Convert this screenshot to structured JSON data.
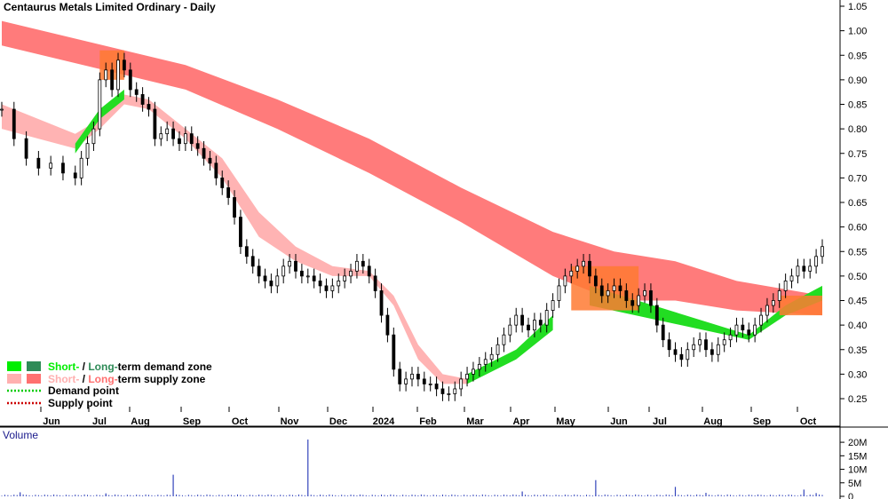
{
  "chart_data": {
    "type": "candlestick",
    "title": "Centaurus Metals Limited Ordinary - Daily",
    "x_ticks": [
      "Jun",
      "Jul",
      "Aug",
      "Sep",
      "Oct",
      "Nov",
      "Dec",
      "2024",
      "Feb",
      "Mar",
      "Apr",
      "May",
      "Jun",
      "Jul",
      "Aug",
      "Sep",
      "Oct"
    ],
    "y_ticks": [
      "1.05",
      "1.00",
      "0.95",
      "0.90",
      "0.85",
      "0.80",
      "0.75",
      "0.70",
      "0.65",
      "0.60",
      "0.55",
      "0.50",
      "0.45",
      "0.40",
      "0.35",
      "0.30",
      "0.25"
    ],
    "ylim": [
      0.2,
      1.06
    ],
    "price_series": {
      "name": "Price",
      "points": [
        [
          0,
          0.84
        ],
        [
          2,
          0.78
        ],
        [
          4,
          0.74
        ],
        [
          6,
          0.72
        ],
        [
          8,
          0.73
        ],
        [
          10,
          0.71
        ],
        [
          12,
          0.7
        ],
        [
          13,
          0.74
        ],
        [
          14,
          0.77
        ],
        [
          15,
          0.8
        ],
        [
          16,
          0.9
        ],
        [
          17,
          0.92
        ],
        [
          18,
          0.88
        ],
        [
          19,
          0.94
        ],
        [
          20,
          0.92
        ],
        [
          21,
          0.88
        ],
        [
          22,
          0.87
        ],
        [
          23,
          0.85
        ],
        [
          24,
          0.84
        ],
        [
          25,
          0.78
        ],
        [
          26,
          0.79
        ],
        [
          27,
          0.8
        ],
        [
          28,
          0.78
        ],
        [
          29,
          0.77
        ],
        [
          30,
          0.79
        ],
        [
          31,
          0.77
        ],
        [
          32,
          0.76
        ],
        [
          33,
          0.74
        ],
        [
          34,
          0.73
        ],
        [
          35,
          0.7
        ],
        [
          36,
          0.68
        ],
        [
          37,
          0.66
        ],
        [
          38,
          0.62
        ],
        [
          39,
          0.56
        ],
        [
          40,
          0.54
        ],
        [
          41,
          0.52
        ],
        [
          42,
          0.5
        ],
        [
          43,
          0.49
        ],
        [
          44,
          0.48
        ],
        [
          45,
          0.5
        ],
        [
          46,
          0.52
        ],
        [
          47,
          0.53
        ],
        [
          48,
          0.51
        ],
        [
          49,
          0.5
        ],
        [
          50,
          0.5
        ],
        [
          51,
          0.49
        ],
        [
          52,
          0.48
        ],
        [
          53,
          0.47
        ],
        [
          54,
          0.48
        ],
        [
          55,
          0.49
        ],
        [
          56,
          0.5
        ],
        [
          57,
          0.51
        ],
        [
          58,
          0.53
        ],
        [
          59,
          0.52
        ],
        [
          60,
          0.5
        ],
        [
          61,
          0.47
        ],
        [
          62,
          0.42
        ],
        [
          63,
          0.38
        ],
        [
          64,
          0.31
        ],
        [
          65,
          0.28
        ],
        [
          66,
          0.29
        ],
        [
          67,
          0.3
        ],
        [
          68,
          0.29
        ],
        [
          69,
          0.28
        ],
        [
          70,
          0.28
        ],
        [
          71,
          0.27
        ],
        [
          72,
          0.26
        ],
        [
          73,
          0.26
        ],
        [
          74,
          0.27
        ],
        [
          75,
          0.29
        ],
        [
          76,
          0.3
        ],
        [
          77,
          0.31
        ],
        [
          78,
          0.32
        ],
        [
          79,
          0.33
        ],
        [
          80,
          0.34
        ],
        [
          81,
          0.36
        ],
        [
          82,
          0.38
        ],
        [
          83,
          0.4
        ],
        [
          84,
          0.42
        ],
        [
          85,
          0.4
        ],
        [
          86,
          0.39
        ],
        [
          87,
          0.41
        ],
        [
          88,
          0.4
        ],
        [
          89,
          0.43
        ],
        [
          90,
          0.45
        ],
        [
          91,
          0.48
        ],
        [
          92,
          0.5
        ],
        [
          93,
          0.51
        ],
        [
          94,
          0.52
        ],
        [
          95,
          0.53
        ],
        [
          96,
          0.5
        ],
        [
          97,
          0.48
        ],
        [
          98,
          0.46
        ],
        [
          99,
          0.47
        ],
        [
          100,
          0.48
        ],
        [
          101,
          0.47
        ],
        [
          102,
          0.45
        ],
        [
          103,
          0.44
        ],
        [
          104,
          0.46
        ],
        [
          105,
          0.47
        ],
        [
          106,
          0.44
        ],
        [
          107,
          0.4
        ],
        [
          108,
          0.37
        ],
        [
          109,
          0.35
        ],
        [
          110,
          0.34
        ],
        [
          111,
          0.33
        ],
        [
          112,
          0.35
        ],
        [
          113,
          0.36
        ],
        [
          114,
          0.37
        ],
        [
          115,
          0.35
        ],
        [
          116,
          0.34
        ],
        [
          117,
          0.36
        ],
        [
          118,
          0.37
        ],
        [
          119,
          0.38
        ],
        [
          120,
          0.4
        ],
        [
          121,
          0.39
        ],
        [
          122,
          0.38
        ],
        [
          123,
          0.4
        ],
        [
          124,
          0.42
        ],
        [
          125,
          0.44
        ],
        [
          126,
          0.45
        ],
        [
          127,
          0.47
        ],
        [
          128,
          0.49
        ],
        [
          129,
          0.5
        ],
        [
          130,
          0.52
        ],
        [
          131,
          0.51
        ],
        [
          132,
          0.52
        ],
        [
          133,
          0.54
        ],
        [
          134,
          0.56
        ]
      ]
    },
    "zones": {
      "long_term_supply": {
        "upper": [
          [
            0,
            1.02
          ],
          [
            20,
            0.96
          ],
          [
            30,
            0.93
          ],
          [
            45,
            0.86
          ],
          [
            60,
            0.78
          ],
          [
            75,
            0.68
          ],
          [
            90,
            0.59
          ],
          [
            100,
            0.55
          ],
          [
            110,
            0.53
          ],
          [
            120,
            0.49
          ],
          [
            134,
            0.46
          ]
        ],
        "lower": [
          [
            0,
            0.97
          ],
          [
            20,
            0.91
          ],
          [
            30,
            0.88
          ],
          [
            45,
            0.8
          ],
          [
            60,
            0.71
          ],
          [
            75,
            0.61
          ],
          [
            90,
            0.5
          ],
          [
            100,
            0.45
          ],
          [
            110,
            0.45
          ],
          [
            120,
            0.43
          ],
          [
            134,
            0.42
          ]
        ]
      },
      "short_term_supply": {
        "upper": [
          [
            0,
            0.85
          ],
          [
            6,
            0.82
          ],
          [
            12,
            0.79
          ],
          [
            16,
            0.82
          ],
          [
            20,
            0.87
          ],
          [
            24,
            0.86
          ],
          [
            30,
            0.8
          ],
          [
            36,
            0.74
          ],
          [
            42,
            0.63
          ],
          [
            48,
            0.56
          ],
          [
            54,
            0.52
          ],
          [
            60,
            0.51
          ],
          [
            64,
            0.46
          ],
          [
            68,
            0.36
          ],
          [
            72,
            0.3
          ],
          [
            76,
            0.29
          ]
        ],
        "lower": [
          [
            0,
            0.8
          ],
          [
            6,
            0.78
          ],
          [
            12,
            0.76
          ],
          [
            16,
            0.8
          ],
          [
            20,
            0.85
          ],
          [
            24,
            0.84
          ],
          [
            30,
            0.78
          ],
          [
            36,
            0.7
          ],
          [
            42,
            0.58
          ],
          [
            48,
            0.53
          ],
          [
            54,
            0.5
          ],
          [
            60,
            0.5
          ],
          [
            64,
            0.44
          ],
          [
            68,
            0.33
          ],
          [
            72,
            0.28
          ],
          [
            76,
            0.28
          ]
        ]
      },
      "short_term_demand": {
        "upper": [
          [
            12,
            0.77
          ],
          [
            16,
            0.84
          ],
          [
            20,
            0.88
          ],
          [
            76,
            0.3
          ],
          [
            84,
            0.35
          ],
          [
            90,
            0.42
          ],
          [
            96,
            0.48
          ],
          [
            122,
            0.38
          ],
          [
            128,
            0.44
          ],
          [
            134,
            0.48
          ]
        ],
        "lower": [
          [
            12,
            0.75
          ],
          [
            16,
            0.82
          ],
          [
            20,
            0.86
          ],
          [
            76,
            0.28
          ],
          [
            84,
            0.33
          ],
          [
            90,
            0.39
          ],
          [
            96,
            0.44
          ],
          [
            122,
            0.37
          ],
          [
            128,
            0.42
          ],
          [
            134,
            0.45
          ]
        ]
      }
    },
    "volume": {
      "title": "Volume",
      "y_ticks": [
        "20M",
        "15M",
        "10M",
        "5M",
        "0"
      ],
      "ylim": [
        0,
        22
      ],
      "spikes": [
        [
          3,
          1.5
        ],
        [
          17,
          1.1
        ],
        [
          28,
          8
        ],
        [
          50,
          21
        ],
        [
          85,
          1.8
        ],
        [
          97,
          6
        ],
        [
          110,
          3.5
        ],
        [
          115,
          1.3
        ],
        [
          131,
          2.5
        ],
        [
          133,
          1.2
        ]
      ]
    },
    "legend": [
      {
        "label_a": "Short-",
        "sep": " / ",
        "label_b": "Long-",
        "rest": "term demand zone",
        "color_a": "#00ee00",
        "color_b": "#2e8b57"
      },
      {
        "label_a": "Short-",
        "sep": " / ",
        "label_b": "Long-",
        "rest": "term supply zone",
        "color_a": "#ffb0b0",
        "color_b": "#ff7070"
      },
      {
        "label": "Demand point",
        "color": "#00cc00"
      },
      {
        "label": "Supply point",
        "color": "#cc0000"
      }
    ]
  }
}
